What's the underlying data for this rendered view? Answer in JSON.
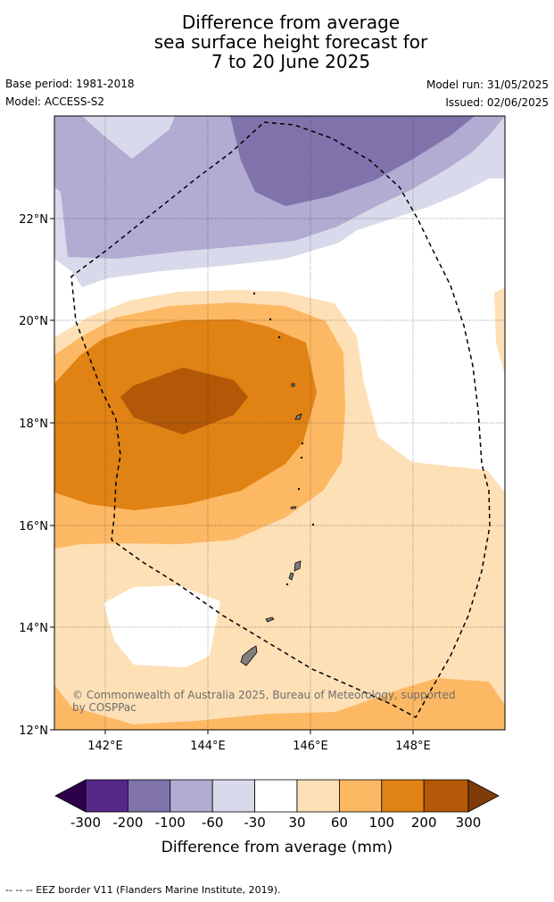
{
  "title": {
    "line1": "Difference from average",
    "line2": "sea surface height forecast for",
    "line3": "7 to 20 June 2025"
  },
  "meta": {
    "base_period": "Base period: 1981-2018",
    "model": "Model: ACCESS-S2",
    "model_run": "Model run: 31/05/2025",
    "issued": "Issued: 02/06/2025"
  },
  "map": {
    "lon_ticks": [
      "142°E",
      "144°E",
      "146°E",
      "148°E"
    ],
    "lat_ticks": [
      "22°N",
      "20°N",
      "18°N",
      "16°N",
      "14°N",
      "12°N"
    ],
    "copyright_line1": "© Commonwealth of Australia 2025, Bureau of Meteorology, supported",
    "copyright_line2": "by COSPPac",
    "eez_border_style": "dashed black line",
    "land_color": "#808080"
  },
  "colorbar": {
    "label": "Difference from average (mm)",
    "tick_labels": [
      "-300",
      "-200",
      "-100",
      "-60",
      "-30",
      "30",
      "60",
      "100",
      "200",
      "300"
    ],
    "colors": {
      "below_-300": "#2d004b",
      "-300_-200": "#542788",
      "-200_-100": "#8073ac",
      "-100_-60": "#b2abd2",
      "-60_-30": "#d8daeb",
      "-30_30": "#ffffff",
      "30_60": "#fee0b6",
      "60_100": "#fdb863",
      "100_200": "#e08214",
      "200_300": "#b35806",
      "above_300": "#7f3b08"
    }
  },
  "footnote": "--  --  -- EEZ border V11 (Flanders Marine Institute, 2019)."
}
